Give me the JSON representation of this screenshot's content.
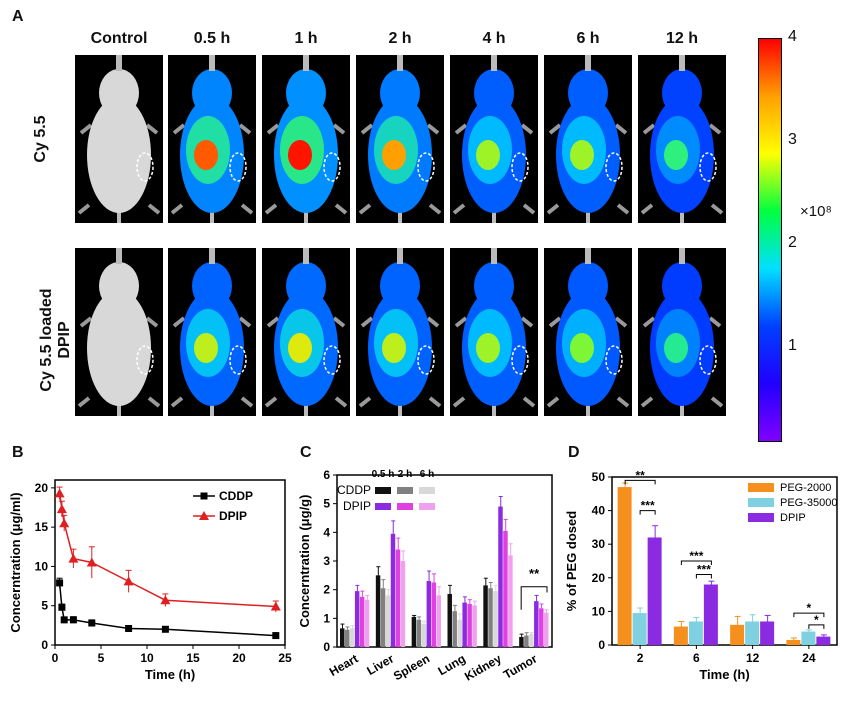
{
  "panel_a": {
    "label": "A",
    "timepoints": [
      "Control",
      "0.5 h",
      "1 h",
      "2 h",
      "4 h",
      "6 h",
      "12 h"
    ],
    "row1_label": "Cy 5.5",
    "row2_label_line1": "Cy 5.5 loaded",
    "row2_label_line2": "DPIP",
    "colorbar": {
      "ticks": [
        "4",
        "3",
        "2",
        "1"
      ],
      "unit": "×10⁸",
      "colors": [
        "#ff0000",
        "#ffa000",
        "#ffff00",
        "#00ff40",
        "#00e0ff",
        "#0040ff",
        "#2000ff",
        "#8000ff"
      ]
    },
    "intensity_row1": [
      0.0,
      0.9,
      1.0,
      0.8,
      0.55,
      0.55,
      0.3
    ],
    "intensity_row2": [
      0.0,
      0.6,
      0.65,
      0.6,
      0.55,
      0.5,
      0.25
    ]
  },
  "panel_b": {
    "label": "B",
    "chart_data": {
      "type": "line",
      "xlabel": "Time (h)",
      "ylabel": "Concerntration (μg/ml)",
      "xlim": [
        0,
        25
      ],
      "ylim": [
        0,
        21
      ],
      "xticks": [
        "0",
        "5",
        "10",
        "15",
        "20",
        "25"
      ],
      "yticks": [
        "0",
        "5",
        "10",
        "15",
        "20"
      ],
      "series": [
        {
          "name": "CDDP",
          "color": "#000000",
          "marker": "square",
          "x": [
            0.5,
            0.75,
            1,
            2,
            4,
            8,
            12,
            24
          ],
          "y": [
            7.9,
            4.8,
            3.2,
            3.2,
            2.8,
            2.1,
            2.0,
            1.2
          ],
          "err": [
            0.6,
            0.4,
            0.3,
            0.4,
            0.4,
            0.2,
            0.2,
            0.2
          ]
        },
        {
          "name": "DPIP",
          "color": "#e02020",
          "marker": "triangle",
          "x": [
            0.5,
            0.75,
            1,
            2,
            4,
            8,
            12,
            24
          ],
          "y": [
            19.3,
            17.3,
            15.5,
            11.0,
            10.5,
            8.1,
            5.7,
            4.9
          ],
          "err": [
            0.8,
            1.0,
            1.0,
            1.2,
            2.0,
            1.4,
            0.8,
            0.7
          ]
        }
      ]
    }
  },
  "panel_c": {
    "label": "C",
    "chart_data": {
      "type": "bar",
      "ylabel": "Concerntration (μg/g)",
      "ylim": [
        0,
        6
      ],
      "yticks": [
        "0",
        "1",
        "2",
        "3",
        "4",
        "5",
        "6"
      ],
      "categories": [
        "Heart",
        "Liver",
        "Spleen",
        "Lung",
        "Kidney",
        "Tumor"
      ],
      "legend_times": [
        "0.5 h",
        "2 h",
        "6 h"
      ],
      "legend_groups": [
        "CDDP",
        "DPIP"
      ],
      "series": [
        {
          "name": "CDDP 0.5 h",
          "color": "#111111",
          "values": [
            0.65,
            2.5,
            1.05,
            1.85,
            2.15,
            0.35
          ],
          "err": [
            0.15,
            0.3,
            0.05,
            0.3,
            0.25,
            0.1
          ]
        },
        {
          "name": "CDDP 2 h",
          "color": "#808080",
          "values": [
            0.6,
            2.05,
            0.95,
            1.25,
            2.05,
            0.4
          ],
          "err": [
            0.1,
            0.3,
            0.1,
            0.2,
            0.2,
            0.1
          ]
        },
        {
          "name": "CDDP 6 h",
          "color": "#d8d8d8",
          "values": [
            0.65,
            1.8,
            0.8,
            0.95,
            1.95,
            0.45
          ],
          "err": [
            0.1,
            0.2,
            0.1,
            0.2,
            0.2,
            0.05
          ]
        },
        {
          "name": "DPIP 0.5 h",
          "color": "#8a2be2",
          "values": [
            1.95,
            3.95,
            2.3,
            1.55,
            4.9,
            1.6
          ],
          "err": [
            0.2,
            0.45,
            0.35,
            0.2,
            0.35,
            0.2
          ]
        },
        {
          "name": "DPIP 2 h",
          "color": "#e040e0",
          "values": [
            1.75,
            3.4,
            2.25,
            1.5,
            4.05,
            1.35
          ],
          "err": [
            0.2,
            0.4,
            0.3,
            0.15,
            0.4,
            0.15
          ]
        },
        {
          "name": "DPIP 6 h",
          "color": "#f0a0f0",
          "values": [
            1.65,
            3.0,
            1.8,
            1.45,
            3.2,
            1.2
          ],
          "err": [
            0.15,
            0.35,
            0.3,
            0.15,
            0.4,
            0.1
          ]
        }
      ],
      "annotation": "**"
    }
  },
  "panel_d": {
    "label": "D",
    "chart_data": {
      "type": "bar",
      "xlabel": "Time (h)",
      "ylabel": "% of PEG dosed",
      "ylim": [
        0,
        50
      ],
      "yticks": [
        "0",
        "10",
        "20",
        "30",
        "40",
        "50"
      ],
      "categories": [
        "2",
        "6",
        "12",
        "24"
      ],
      "series": [
        {
          "name": "PEG-2000",
          "color": "#f5901e",
          "values": [
            47,
            5.5,
            6,
            1.5
          ],
          "err": [
            1.2,
            1.5,
            2.5,
            0.6
          ]
        },
        {
          "name": "PEG-35000",
          "color": "#7fd0e0",
          "values": [
            9.5,
            7,
            7,
            4
          ],
          "err": [
            1.5,
            1.2,
            2.0,
            0.5
          ]
        },
        {
          "name": "DPIP",
          "color": "#8a2be2",
          "values": [
            32,
            18,
            7,
            2.5
          ],
          "err": [
            3.5,
            1.0,
            1.8,
            0.5
          ]
        }
      ],
      "annotations": [
        "**",
        "***",
        "***",
        "***",
        "*",
        "*"
      ]
    }
  }
}
